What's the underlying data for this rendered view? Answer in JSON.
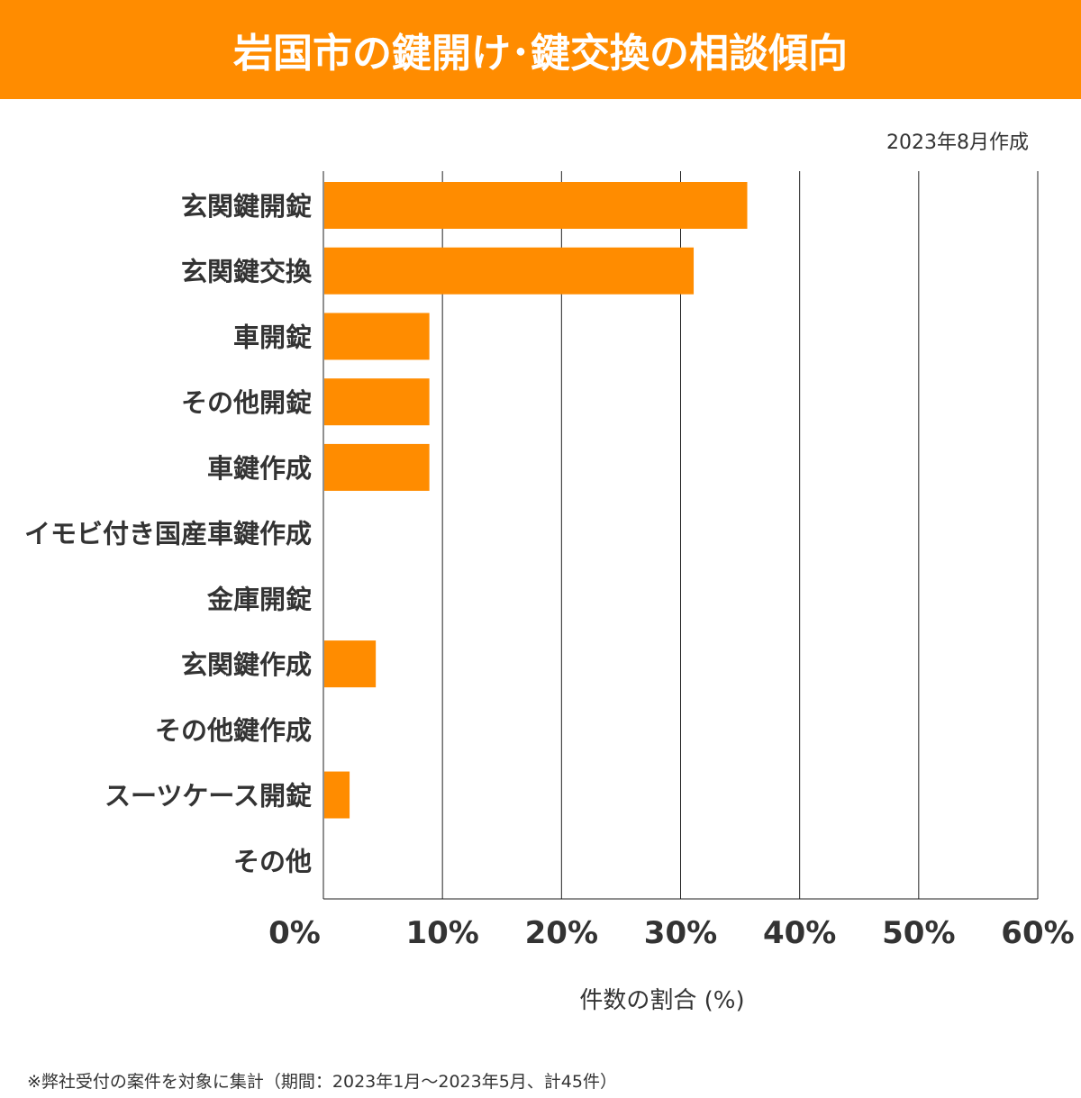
{
  "title": "岩国市の鍵開け･鍵交換の相談傾向",
  "date_note": "2023年8月作成",
  "footnote": "※弊社受付の案件を対象に集計（期間：2023年1月～2023年5月、計45件）",
  "colors": {
    "accent": "#ff8c00"
  },
  "chart_data": {
    "type": "bar",
    "orientation": "horizontal",
    "categories": [
      "玄関鍵開錠",
      "玄関鍵交換",
      "車開錠",
      "その他開錠",
      "車鍵作成",
      "イモビ付き国産車鍵作成",
      "金庫開錠",
      "玄関鍵作成",
      "その他鍵作成",
      "スーツケース開錠",
      "その他"
    ],
    "values": [
      35.6,
      31.1,
      8.9,
      8.9,
      8.9,
      0,
      0,
      4.4,
      0,
      2.2,
      0
    ],
    "xlabel": "件数の割合 (%)",
    "xlim": [
      0,
      60
    ],
    "xticks": [
      "0%",
      "10%",
      "20%",
      "30%",
      "40%",
      "50%",
      "60%"
    ],
    "grid": true
  }
}
